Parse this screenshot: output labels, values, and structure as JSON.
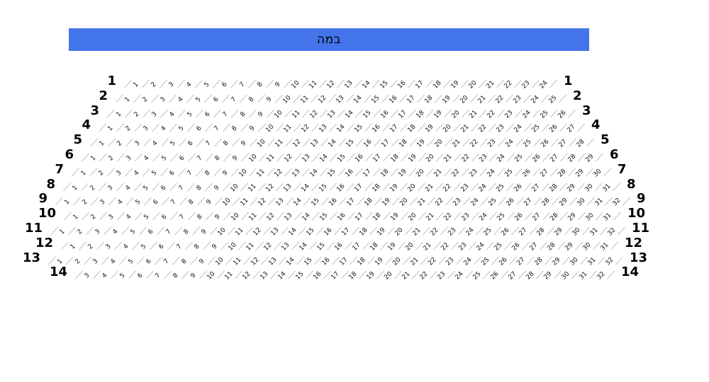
{
  "stage": {
    "label": "במה",
    "color": "#4374e9"
  },
  "seating": {
    "rows": [
      {
        "label": "1",
        "seats": [
          1,
          2,
          3,
          4,
          5,
          6,
          7,
          8,
          9,
          10,
          11,
          12,
          13,
          14,
          15,
          16,
          17,
          18,
          19,
          20,
          21,
          22,
          23,
          24
        ]
      },
      {
        "label": "2",
        "seats": [
          1,
          2,
          3,
          4,
          5,
          6,
          7,
          8,
          9,
          10,
          11,
          12,
          13,
          14,
          15,
          16,
          17,
          18,
          19,
          20,
          21,
          22,
          23,
          24,
          25
        ]
      },
      {
        "label": "3",
        "seats": [
          1,
          2,
          3,
          4,
          5,
          6,
          7,
          8,
          9,
          10,
          11,
          12,
          13,
          14,
          15,
          16,
          17,
          18,
          19,
          20,
          21,
          22,
          23,
          24,
          25,
          26
        ]
      },
      {
        "label": "4",
        "seats": [
          1,
          2,
          3,
          4,
          5,
          6,
          7,
          8,
          9,
          10,
          11,
          12,
          13,
          14,
          15,
          16,
          17,
          18,
          19,
          20,
          21,
          22,
          23,
          24,
          25,
          26,
          27
        ]
      },
      {
        "label": "5",
        "seats": [
          1,
          2,
          3,
          4,
          5,
          6,
          7,
          8,
          9,
          10,
          11,
          12,
          13,
          14,
          15,
          16,
          17,
          18,
          19,
          20,
          21,
          22,
          23,
          24,
          25,
          26,
          27,
          28
        ]
      },
      {
        "label": "6",
        "seats": [
          1,
          2,
          3,
          4,
          5,
          6,
          7,
          8,
          9,
          10,
          11,
          12,
          13,
          14,
          15,
          16,
          17,
          18,
          19,
          20,
          21,
          22,
          23,
          24,
          25,
          26,
          27,
          28,
          29
        ]
      },
      {
        "label": "7",
        "seats": [
          1,
          2,
          3,
          4,
          5,
          6,
          7,
          8,
          9,
          10,
          11,
          12,
          13,
          14,
          15,
          16,
          17,
          18,
          19,
          20,
          21,
          22,
          23,
          24,
          25,
          26,
          27,
          28,
          29,
          30
        ]
      },
      {
        "label": "8",
        "seats": [
          1,
          2,
          3,
          4,
          5,
          6,
          7,
          8,
          9,
          10,
          11,
          12,
          13,
          14,
          15,
          16,
          17,
          18,
          19,
          20,
          21,
          22,
          23,
          24,
          25,
          26,
          27,
          28,
          29,
          30,
          31
        ]
      },
      {
        "label": "9",
        "seats": [
          1,
          2,
          3,
          4,
          5,
          6,
          7,
          8,
          9,
          10,
          11,
          12,
          13,
          14,
          15,
          16,
          17,
          18,
          19,
          20,
          21,
          22,
          23,
          24,
          25,
          26,
          27,
          28,
          29,
          30,
          31,
          32
        ]
      },
      {
        "label": "10",
        "seats": [
          1,
          2,
          3,
          4,
          5,
          6,
          7,
          8,
          9,
          10,
          11,
          12,
          13,
          14,
          15,
          16,
          17,
          18,
          19,
          20,
          21,
          22,
          23,
          24,
          25,
          26,
          27,
          28,
          29,
          30,
          31
        ]
      },
      {
        "label": "11",
        "seats": [
          1,
          2,
          3,
          4,
          5,
          6,
          7,
          8,
          9,
          10,
          11,
          12,
          13,
          14,
          15,
          16,
          17,
          18,
          19,
          20,
          21,
          22,
          23,
          24,
          25,
          26,
          27,
          28,
          29,
          30,
          31,
          32
        ]
      },
      {
        "label": "12",
        "seats": [
          1,
          2,
          3,
          4,
          5,
          6,
          7,
          8,
          9,
          10,
          11,
          12,
          13,
          14,
          15,
          16,
          17,
          18,
          19,
          20,
          21,
          22,
          23,
          24,
          25,
          26,
          27,
          28,
          29,
          30,
          31
        ]
      },
      {
        "label": "13",
        "seats": [
          1,
          2,
          3,
          4,
          5,
          6,
          7,
          8,
          9,
          10,
          11,
          12,
          13,
          14,
          15,
          16,
          17,
          18,
          19,
          20,
          21,
          22,
          23,
          24,
          25,
          26,
          27,
          28,
          29,
          30,
          31,
          32
        ]
      },
      {
        "label": "14",
        "seats": [
          3,
          4,
          5,
          6,
          7,
          8,
          9,
          10,
          11,
          12,
          13,
          14,
          15,
          16,
          17,
          18,
          19,
          20,
          21,
          22,
          23,
          24,
          25,
          26,
          27,
          28,
          29,
          30,
          31,
          32
        ]
      }
    ]
  }
}
